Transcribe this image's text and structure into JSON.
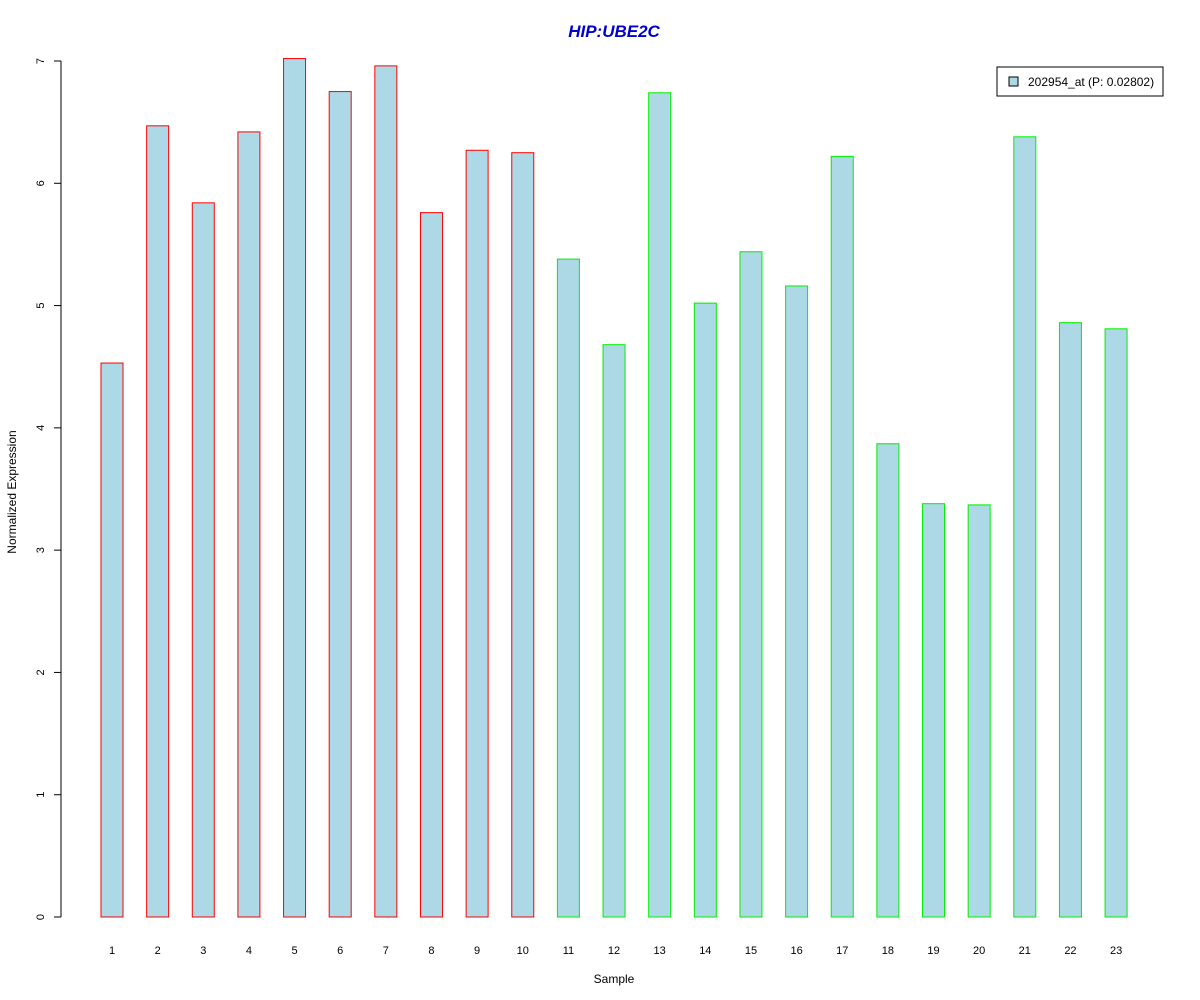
{
  "chart_data": {
    "type": "bar",
    "title": "HIP:UBE2C",
    "xlabel": "Sample",
    "ylabel": "Normalized Expression",
    "categories": [
      "1",
      "2",
      "3",
      "4",
      "5",
      "6",
      "7",
      "8",
      "9",
      "10",
      "11",
      "12",
      "13",
      "14",
      "15",
      "16",
      "17",
      "18",
      "19",
      "20",
      "21",
      "22",
      "23"
    ],
    "series": [
      {
        "name": "202954_at (P: 0.02802)",
        "values": [
          4.53,
          6.47,
          5.84,
          6.42,
          7.02,
          6.75,
          6.96,
          5.76,
          6.27,
          6.25,
          5.38,
          4.68,
          6.74,
          5.02,
          5.44,
          5.16,
          6.22,
          3.87,
          3.38,
          3.37,
          6.38,
          4.86,
          4.81
        ]
      }
    ],
    "groups": [
      {
        "samples": [
          1,
          10
        ],
        "border_color": "#ff0000"
      },
      {
        "samples": [
          11,
          23
        ],
        "border_color": "#00ee00"
      }
    ],
    "ylim": [
      0,
      7
    ],
    "yticks": [
      0,
      1,
      2,
      3,
      4,
      5,
      6,
      7
    ],
    "grid": false,
    "legend_position": "top-right",
    "colors": {
      "bar_fill": "#add8e6",
      "title": "#0000cc",
      "axis": "#000000"
    }
  }
}
